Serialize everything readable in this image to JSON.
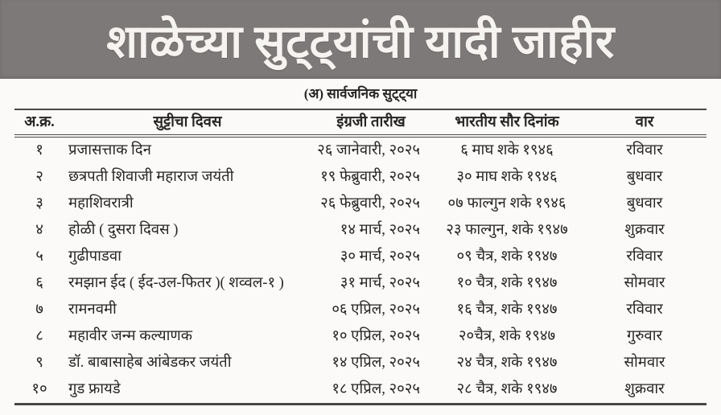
{
  "page": {
    "title": "शाळेच्या सुट्ट्यांची यादी जाहीर",
    "subtitle": "(अ) सार्वजनिक सुट्ट्या"
  },
  "table": {
    "headers": [
      "अ.क्र.",
      "सुट्टीचा दिवस",
      "इंग्रजी तारीख",
      "भारतीय सौर दिनांक",
      "वार"
    ],
    "rows": [
      [
        "१",
        "प्रजासत्ताक दिन",
        "२६ जानेवारी, २०२५",
        "६ माघ शके १९४६",
        "रविवार"
      ],
      [
        "२",
        "छत्रपती शिवाजी महाराज जयंती",
        "१९ फेब्रुवारी, २०२५",
        "३० माघ शके १९४६",
        "बुधवार"
      ],
      [
        "३",
        "महाशिवरात्री",
        "२६ फेब्रुवारी, २०२५",
        "०७ फाल्गुन शके १९४६",
        "बुधवार"
      ],
      [
        "४",
        "होळी ( दुसरा दिवस )",
        "१४ मार्च, २०२५",
        "२३ फाल्गुन, शके १९४७",
        "शुक्रवार"
      ],
      [
        "५",
        "गुढीपाडवा",
        "३० मार्च, २०२५",
        "०९ चैत्र, शके १९४७",
        "रविवार"
      ],
      [
        "६",
        "रमझान ईद ( ईद-उल-फितर )( शव्वल-१ )",
        "३१ मार्च, २०२५",
        "१० चैत्र, शके १९४७",
        "सोमवार"
      ],
      [
        "७",
        "रामनवमी",
        "०६ एप्रिल, २०२५",
        "१६ चैत्र, शके १९४७",
        "रविवार"
      ],
      [
        "८",
        "महावीर जन्म कल्याणक",
        "१० एप्रिल, २०२५",
        "२०चैत्र, शके १९४७",
        "गुरुवार"
      ],
      [
        "९",
        "डॉ. बाबासाहेब आंबेडकर जयंती",
        "१४ एप्रिल, २०२५",
        "२४ चैत्र, शके १९४७",
        "सोमवार"
      ],
      [
        "१०",
        "गुड फ्रायडे",
        "१८ एप्रिल, २०२५",
        "२८ चैत्र, शके १९४७",
        "शुक्रवार"
      ]
    ]
  },
  "colors": {
    "banner_bg": "#7e7979",
    "banner_text": "#f6f4f1",
    "text": "#272625",
    "border": "#4a4846",
    "page_bg": "#fbfaf8"
  }
}
